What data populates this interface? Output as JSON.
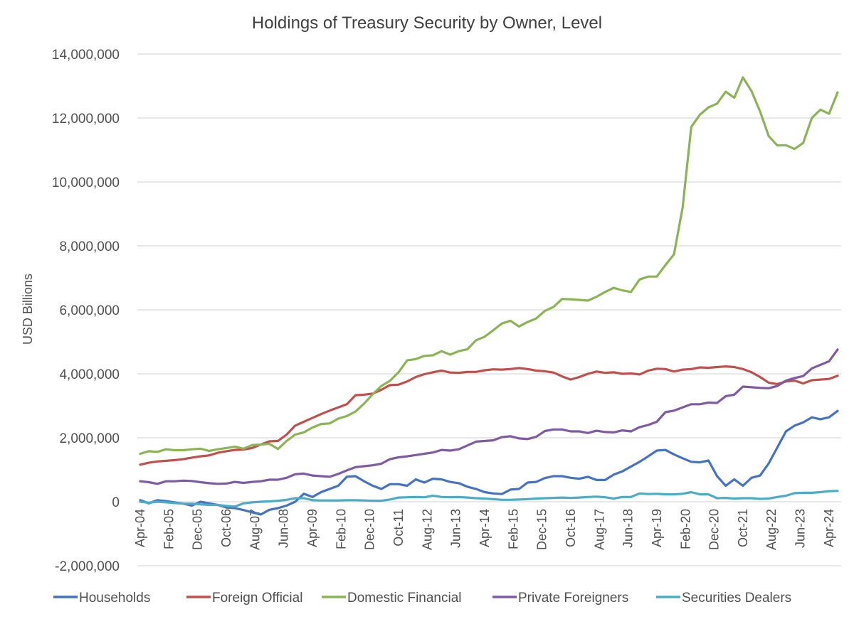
{
  "chart_data": {
    "type": "line",
    "title": "Holdings of Treasury Security by Owner, Level",
    "xlabel": "",
    "ylabel": "USD Billions",
    "ylim": [
      -2000000,
      14000000
    ],
    "yticks": [
      -2000000,
      0,
      2000000,
      4000000,
      6000000,
      8000000,
      10000000,
      12000000,
      14000000
    ],
    "ytick_labels": [
      "-2,000,000",
      "0",
      "2,000,000",
      "4,000,000",
      "6,000,000",
      "8,000,000",
      "10,000,000",
      "12,000,000",
      "14,000,000"
    ],
    "grid": true,
    "legend_position": "bottom",
    "x_frequency": "quarterly",
    "x_start": "Apr-04",
    "x_end": "Apr-24",
    "xtick_labels": [
      "Apr-04",
      "Feb-05",
      "Dec-05",
      "Oct-06",
      "Aug-07",
      "Jun-08",
      "Apr-09",
      "Feb-10",
      "Dec-10",
      "Oct-11",
      "Aug-12",
      "Jun-13",
      "Apr-14",
      "Feb-15",
      "Dec-15",
      "Oct-16",
      "Aug-17",
      "Jun-18",
      "Apr-19",
      "Feb-20",
      "Dec-20",
      "Oct-21",
      "Aug-22",
      "Jun-23",
      "Apr-24"
    ],
    "series": [
      {
        "name": "Households",
        "color": "#4472c4",
        "values": [
          50000,
          -50000,
          50000,
          20000,
          -20000,
          -60000,
          -120000,
          0,
          -50000,
          -100000,
          -180000,
          -200000,
          -260000,
          -330000,
          -400000,
          -250000,
          -200000,
          -120000,
          0,
          250000,
          150000,
          300000,
          400000,
          500000,
          780000,
          800000,
          640000,
          500000,
          400000,
          550000,
          550000,
          500000,
          700000,
          600000,
          720000,
          700000,
          620000,
          580000,
          470000,
          400000,
          300000,
          260000,
          240000,
          380000,
          400000,
          600000,
          620000,
          740000,
          800000,
          800000,
          750000,
          720000,
          780000,
          680000,
          680000,
          850000,
          950000,
          1100000,
          1250000,
          1420000,
          1600000,
          1620000,
          1480000,
          1360000,
          1250000,
          1230000,
          1290000,
          800000,
          500000,
          700000,
          500000,
          750000,
          820000,
          1200000,
          1700000,
          2200000,
          2380000,
          2480000,
          2640000,
          2580000,
          2640000,
          2840000
        ]
      },
      {
        "name": "Foreign Official",
        "color": "#c0504d",
        "values": [
          1160000,
          1220000,
          1260000,
          1280000,
          1300000,
          1330000,
          1380000,
          1420000,
          1450000,
          1530000,
          1580000,
          1620000,
          1630000,
          1680000,
          1790000,
          1890000,
          1900000,
          2100000,
          2380000,
          2500000,
          2620000,
          2740000,
          2850000,
          2950000,
          3050000,
          3330000,
          3350000,
          3380000,
          3500000,
          3650000,
          3660000,
          3760000,
          3900000,
          3990000,
          4050000,
          4100000,
          4040000,
          4030000,
          4060000,
          4060000,
          4110000,
          4140000,
          4130000,
          4150000,
          4180000,
          4150000,
          4100000,
          4080000,
          4040000,
          3920000,
          3820000,
          3900000,
          4000000,
          4070000,
          4030000,
          4050000,
          4000000,
          4010000,
          3980000,
          4100000,
          4160000,
          4150000,
          4070000,
          4130000,
          4150000,
          4200000,
          4190000,
          4210000,
          4230000,
          4210000,
          4150000,
          4050000,
          3900000,
          3720000,
          3680000,
          3760000,
          3790000,
          3700000,
          3800000,
          3820000,
          3840000,
          3940000
        ]
      },
      {
        "name": "Domestic Financial",
        "color": "#8cb455",
        "values": [
          1500000,
          1580000,
          1560000,
          1640000,
          1610000,
          1610000,
          1640000,
          1660000,
          1590000,
          1640000,
          1680000,
          1720000,
          1660000,
          1770000,
          1790000,
          1810000,
          1650000,
          1900000,
          2100000,
          2170000,
          2320000,
          2430000,
          2450000,
          2600000,
          2680000,
          2820000,
          3070000,
          3360000,
          3620000,
          3780000,
          4050000,
          4420000,
          4460000,
          4560000,
          4580000,
          4710000,
          4600000,
          4710000,
          4770000,
          5050000,
          5160000,
          5360000,
          5570000,
          5660000,
          5480000,
          5620000,
          5730000,
          5970000,
          6090000,
          6340000,
          6330000,
          6310000,
          6290000,
          6410000,
          6560000,
          6690000,
          6610000,
          6560000,
          6950000,
          7040000,
          7040000,
          7400000,
          7740000,
          9200000,
          11720000,
          12100000,
          12330000,
          12450000,
          12820000,
          12630000,
          13270000,
          12840000,
          12200000,
          11430000,
          11140000,
          11150000,
          11030000,
          11220000,
          12000000,
          12260000,
          12130000,
          12800000
        ]
      },
      {
        "name": "Private Foreigners",
        "color": "#7f5ba6",
        "values": [
          640000,
          610000,
          560000,
          640000,
          640000,
          660000,
          650000,
          610000,
          580000,
          560000,
          570000,
          620000,
          590000,
          620000,
          640000,
          690000,
          690000,
          750000,
          860000,
          880000,
          820000,
          800000,
          780000,
          870000,
          980000,
          1080000,
          1110000,
          1140000,
          1190000,
          1330000,
          1390000,
          1420000,
          1460000,
          1500000,
          1540000,
          1620000,
          1600000,
          1640000,
          1760000,
          1880000,
          1900000,
          1920000,
          2020000,
          2050000,
          1980000,
          1960000,
          2030000,
          2210000,
          2260000,
          2260000,
          2200000,
          2200000,
          2150000,
          2220000,
          2180000,
          2170000,
          2230000,
          2200000,
          2330000,
          2400000,
          2500000,
          2800000,
          2850000,
          2950000,
          3050000,
          3050000,
          3100000,
          3090000,
          3300000,
          3350000,
          3600000,
          3580000,
          3560000,
          3550000,
          3620000,
          3790000,
          3870000,
          3930000,
          4170000,
          4280000,
          4390000,
          4760000
        ]
      },
      {
        "name": "Securities Dealers",
        "color": "#4bacc6",
        "values": [
          0,
          -30000,
          0,
          -20000,
          -40000,
          -60000,
          -60000,
          -80000,
          -100000,
          -100000,
          -130000,
          -150000,
          -50000,
          -20000,
          0,
          10000,
          30000,
          60000,
          110000,
          110000,
          50000,
          40000,
          40000,
          40000,
          50000,
          50000,
          40000,
          30000,
          30000,
          70000,
          130000,
          140000,
          150000,
          140000,
          190000,
          150000,
          140000,
          150000,
          130000,
          110000,
          100000,
          80000,
          60000,
          60000,
          70000,
          80000,
          100000,
          110000,
          120000,
          130000,
          120000,
          130000,
          150000,
          160000,
          140000,
          100000,
          150000,
          150000,
          260000,
          240000,
          250000,
          230000,
          230000,
          250000,
          300000,
          230000,
          230000,
          110000,
          120000,
          100000,
          110000,
          110000,
          90000,
          100000,
          150000,
          190000,
          270000,
          280000,
          280000,
          300000,
          330000,
          340000
        ]
      }
    ]
  }
}
